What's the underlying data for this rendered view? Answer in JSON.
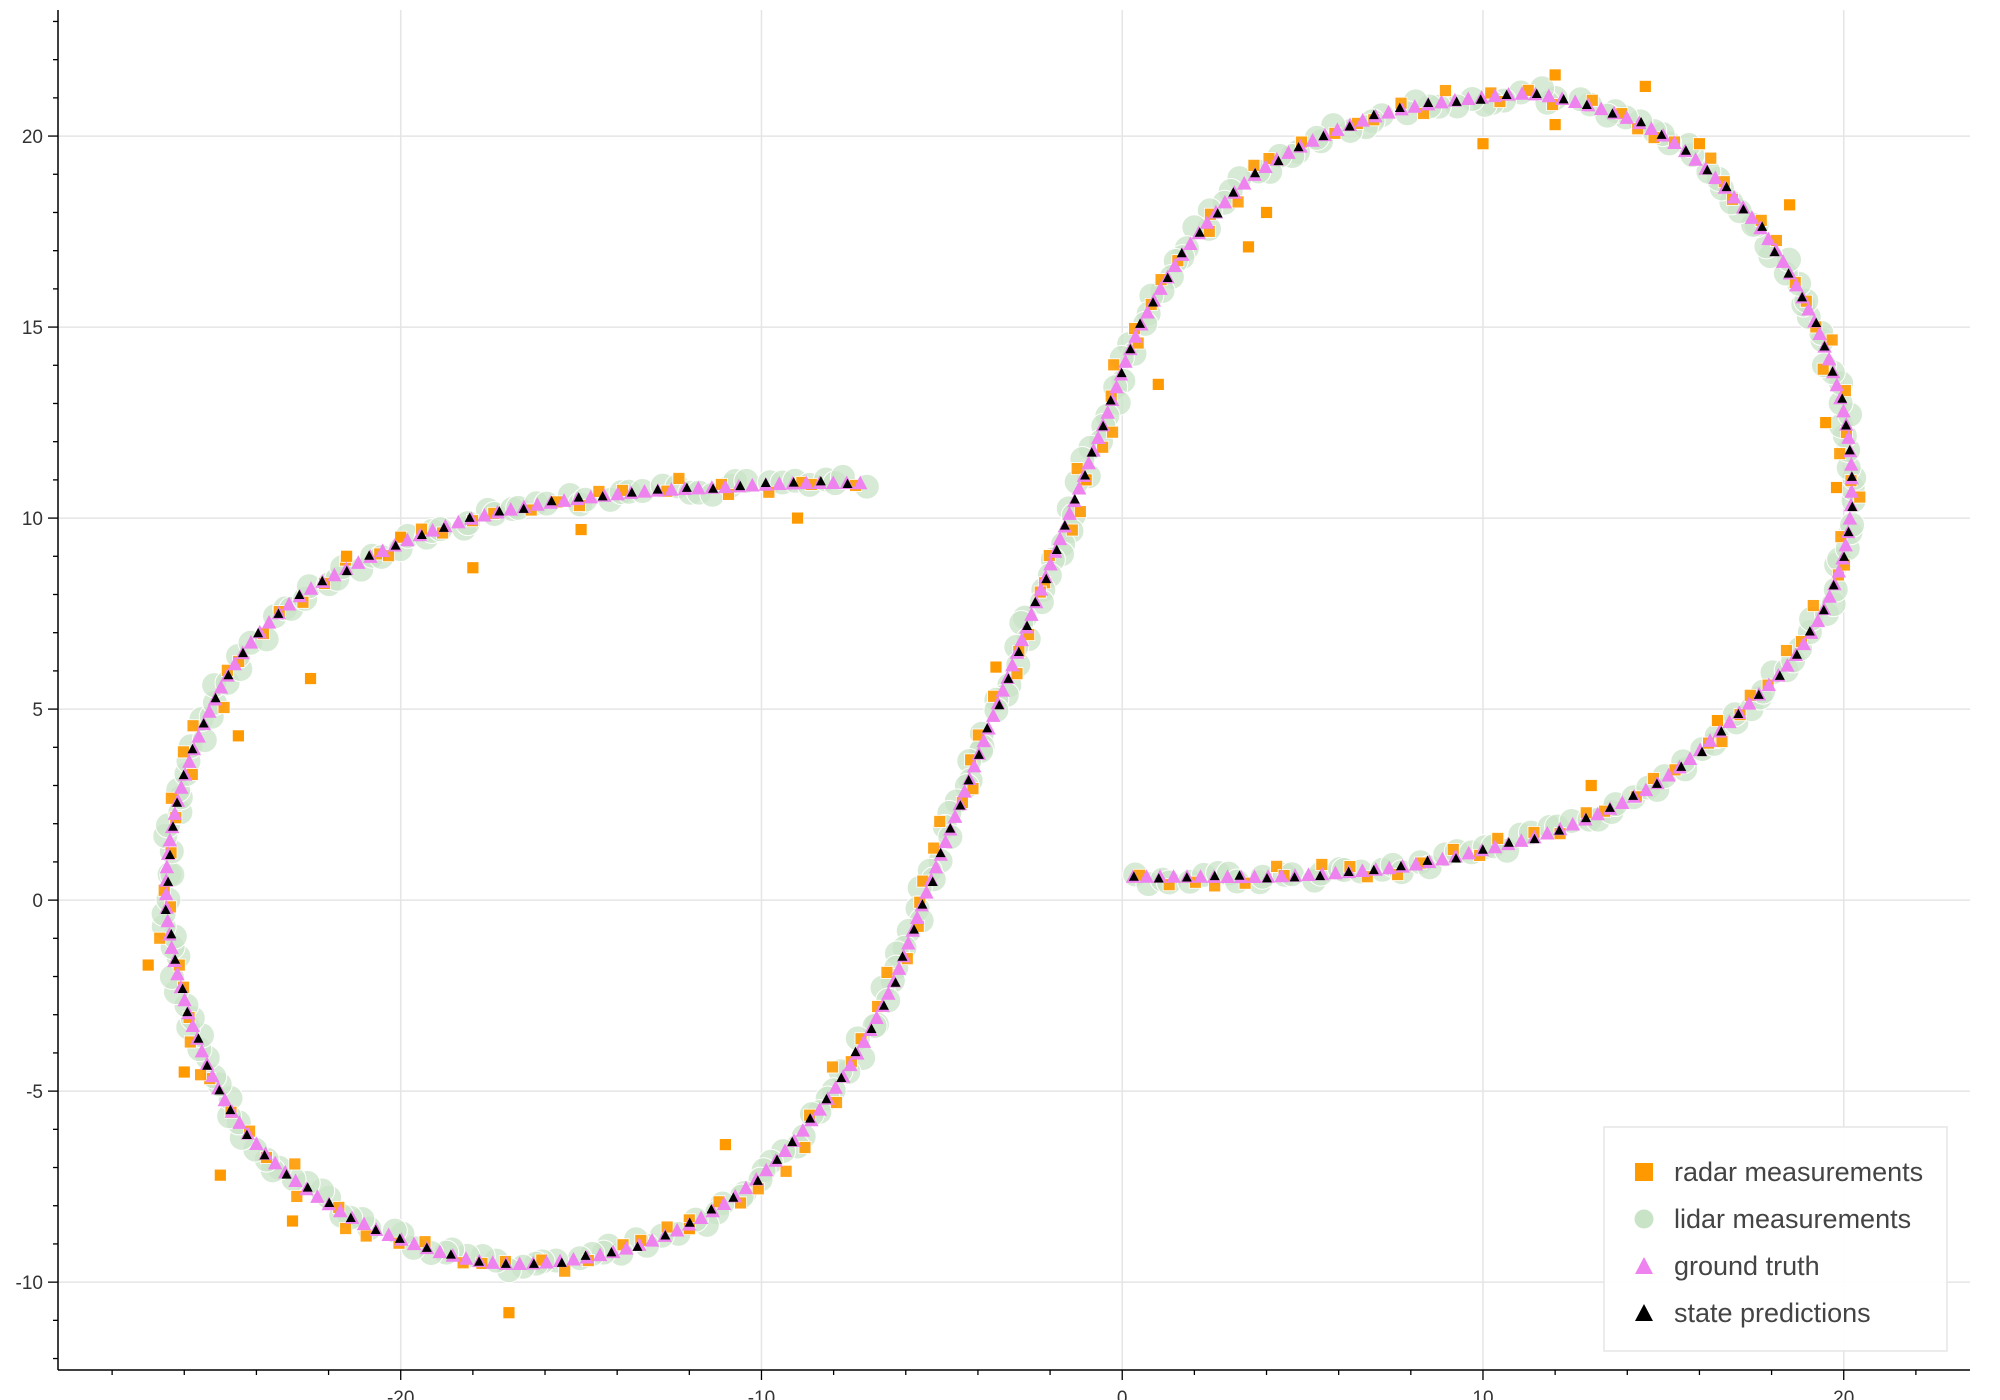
{
  "chart_data": {
    "type": "scatter",
    "title": "",
    "xlabel": "",
    "ylabel": "",
    "xlim": [
      -29.5,
      23.5
    ],
    "ylim": [
      -12.3,
      23.3
    ],
    "grid": true,
    "legend_position": "bottom-right",
    "x_ticks": [
      {
        "value": -20,
        "label": "-20"
      },
      {
        "value": -10,
        "label": "-10"
      },
      {
        "value": 0,
        "label": "0"
      },
      {
        "value": 10,
        "label": "10"
      },
      {
        "value": 20,
        "label": "20"
      }
    ],
    "y_ticks": [
      {
        "value": -10,
        "label": "-10"
      },
      {
        "value": -5,
        "label": "-5"
      },
      {
        "value": 0,
        "label": "0"
      },
      {
        "value": 5,
        "label": "5"
      },
      {
        "value": 10,
        "label": "10"
      },
      {
        "value": 15,
        "label": "15"
      },
      {
        "value": 20,
        "label": "20"
      }
    ],
    "path_control_points": {
      "x": [
        0.3,
        2,
        4,
        6,
        8,
        10,
        12,
        14,
        15.5,
        17,
        18.5,
        19.5,
        20.1,
        20.2,
        19.8,
        19,
        17.5,
        15,
        12,
        10,
        7,
        4,
        2,
        0.5,
        -0.5,
        -1.5,
        -2.5,
        -3.5,
        -4.5,
        -5.5,
        -6.5,
        -8,
        -10,
        -12,
        -14,
        -16,
        -17.5,
        -19,
        -21,
        -23,
        -24.5,
        -25.5,
        -26.3,
        -26.5,
        -26.2,
        -25.5,
        -24.5,
        -23,
        -21,
        -19,
        -17,
        -15,
        -13,
        -11,
        -9,
        -7
      ],
      "y": [
        0.6,
        0.6,
        0.6,
        0.7,
        0.9,
        1.3,
        1.8,
        2.6,
        3.5,
        4.8,
        6.2,
        7.7,
        9.5,
        11.5,
        13.5,
        15.5,
        17.8,
        20,
        21,
        21,
        20.5,
        19.2,
        17.3,
        15,
        12.5,
        10,
        7.5,
        5,
        2.5,
        0,
        -2.5,
        -5,
        -7.2,
        -8.5,
        -9.2,
        -9.5,
        -9.5,
        -9.2,
        -8.5,
        -7.3,
        -5.8,
        -4,
        -1.5,
        0.5,
        2.5,
        4.5,
        6.3,
        7.8,
        8.9,
        9.7,
        10.2,
        10.5,
        10.7,
        10.8,
        10.9,
        10.9
      ]
    },
    "series": [
      {
        "name": "radar measurements",
        "marker": "square",
        "color": "#ff9900"
      },
      {
        "name": "lidar measurements",
        "marker": "circle",
        "color": "#c9e3c7"
      },
      {
        "name": "ground truth",
        "marker": "triangle",
        "color": "#ee82ee"
      },
      {
        "name": "state predictions",
        "marker": "triangle",
        "color": "#000000"
      }
    ],
    "radar_outliers": {
      "x": [
        -26,
        -27,
        -25,
        -22.5,
        -21.5,
        -20,
        -18,
        -17,
        -15,
        -9,
        4,
        3.5,
        1,
        -1,
        -3.5,
        12,
        16,
        18.5,
        19.5,
        19.8,
        16.5,
        13,
        10,
        12,
        14.5,
        -24.5,
        -23,
        -12,
        -11
      ],
      "y": [
        -4.5,
        -1.7,
        -7.2,
        5.8,
        9,
        9.5,
        8.7,
        -10.8,
        9.7,
        10,
        18,
        17.1,
        13.5,
        11,
        6.1,
        20.3,
        19.8,
        18.2,
        12.5,
        10.8,
        4.7,
        3,
        19.8,
        21.6,
        21.3,
        4.3,
        -8.4,
        -8.6,
        -6.4
      ]
    }
  },
  "legend": [
    {
      "label": "radar measurements",
      "icon": "square-marker",
      "color": "#ff9900"
    },
    {
      "label": "lidar measurements",
      "icon": "circle-marker",
      "color": "#c9e3c7"
    },
    {
      "label": "ground truth",
      "icon": "triangle-marker",
      "color": "#ee82ee"
    },
    {
      "label": "state predictions",
      "icon": "triangle-marker",
      "color": "#000000"
    }
  ]
}
